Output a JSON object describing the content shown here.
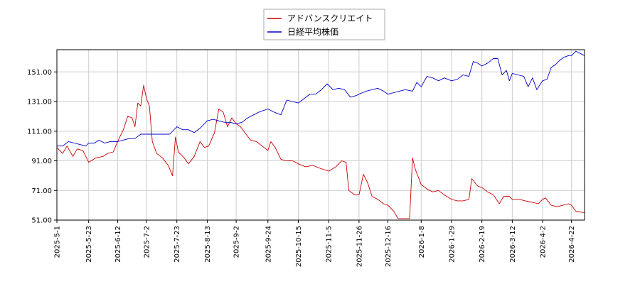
{
  "chart_data": {
    "type": "line",
    "title": "",
    "xlabel": "",
    "ylabel": "",
    "ylim": [
      51,
      166
    ],
    "y_ticks": [
      "51.00",
      "71.00",
      "91.00",
      "111.00",
      "131.00",
      "151.00"
    ],
    "x_range": [
      "2025-05-01",
      "2026-05-01"
    ],
    "x_ticks": [
      "2025-5-1",
      "2025-5-23",
      "2025-6-12",
      "2025-7-2",
      "2025-7-23",
      "2025-8-13",
      "2025-9-2",
      "2025-9-24",
      "2025-10-15",
      "2025-11-5",
      "2025-11-26",
      "2025-12-16",
      "2026-1-8",
      "2026-1-29",
      "2026-2-19",
      "2026-3-12",
      "2026-4-2",
      "2026-4-22"
    ],
    "grid": true,
    "legend_position": "top-center",
    "series": [
      {
        "name": "アドバンスクリエイト",
        "color": "#cc0000",
        "points": [
          [
            "2025-05-01",
            100
          ],
          [
            "2025-05-05",
            96
          ],
          [
            "2025-05-08",
            101
          ],
          [
            "2025-05-12",
            94
          ],
          [
            "2025-05-15",
            99
          ],
          [
            "2025-05-19",
            98
          ],
          [
            "2025-05-23",
            90
          ],
          [
            "2025-05-28",
            93
          ],
          [
            "2025-06-02",
            94
          ],
          [
            "2025-06-05",
            96
          ],
          [
            "2025-06-09",
            97
          ],
          [
            "2025-06-12",
            104
          ],
          [
            "2025-06-14",
            108
          ],
          [
            "2025-06-16",
            112
          ],
          [
            "2025-06-19",
            121
          ],
          [
            "2025-06-22",
            120
          ],
          [
            "2025-06-24",
            114
          ],
          [
            "2025-06-26",
            130
          ],
          [
            "2025-06-28",
            128
          ],
          [
            "2025-06-30",
            142
          ],
          [
            "2025-07-02",
            133
          ],
          [
            "2025-07-04",
            128
          ],
          [
            "2025-07-06",
            104
          ],
          [
            "2025-07-09",
            96
          ],
          [
            "2025-07-13",
            93
          ],
          [
            "2025-07-17",
            88
          ],
          [
            "2025-07-20",
            81
          ],
          [
            "2025-07-22",
            107
          ],
          [
            "2025-07-24",
            97
          ],
          [
            "2025-07-28",
            93
          ],
          [
            "2025-07-31",
            89
          ],
          [
            "2025-08-04",
            94
          ],
          [
            "2025-08-08",
            104
          ],
          [
            "2025-08-11",
            100
          ],
          [
            "2025-08-14",
            101
          ],
          [
            "2025-08-18",
            110
          ],
          [
            "2025-08-21",
            126
          ],
          [
            "2025-08-24",
            124
          ],
          [
            "2025-08-27",
            114
          ],
          [
            "2025-08-30",
            120
          ],
          [
            "2025-09-02",
            116
          ],
          [
            "2025-09-05",
            114
          ],
          [
            "2025-09-08",
            110
          ],
          [
            "2025-09-12",
            105
          ],
          [
            "2025-09-16",
            104
          ],
          [
            "2025-09-20",
            101
          ],
          [
            "2025-09-24",
            98
          ],
          [
            "2025-09-26",
            104
          ],
          [
            "2025-09-29",
            100
          ],
          [
            "2025-10-03",
            92
          ],
          [
            "2025-10-07",
            91
          ],
          [
            "2025-10-11",
            91
          ],
          [
            "2025-10-15",
            89
          ],
          [
            "2025-10-20",
            87
          ],
          [
            "2025-10-25",
            88
          ],
          [
            "2025-10-30",
            86
          ],
          [
            "2025-11-05",
            84
          ],
          [
            "2025-11-10",
            87
          ],
          [
            "2025-11-14",
            91
          ],
          [
            "2025-11-17",
            90
          ],
          [
            "2025-11-19",
            71
          ],
          [
            "2025-11-23",
            68
          ],
          [
            "2025-11-26",
            68
          ],
          [
            "2025-11-29",
            82
          ],
          [
            "2025-12-02",
            76
          ],
          [
            "2025-12-05",
            67
          ],
          [
            "2025-12-09",
            65
          ],
          [
            "2025-12-13",
            62
          ],
          [
            "2025-12-16",
            61
          ],
          [
            "2025-12-20",
            57
          ],
          [
            "2025-12-23",
            52
          ],
          [
            "2025-12-27",
            52
          ],
          [
            "2025-12-31",
            52
          ],
          [
            "2026-01-02",
            93
          ],
          [
            "2026-01-04",
            85
          ],
          [
            "2026-01-08",
            75
          ],
          [
            "2026-01-12",
            72
          ],
          [
            "2026-01-16",
            70
          ],
          [
            "2026-01-20",
            71
          ],
          [
            "2026-01-24",
            68
          ],
          [
            "2026-01-29",
            65
          ],
          [
            "2026-02-02",
            64
          ],
          [
            "2026-02-06",
            64
          ],
          [
            "2026-02-10",
            65
          ],
          [
            "2026-02-12",
            79
          ],
          [
            "2026-02-16",
            74
          ],
          [
            "2026-02-19",
            73
          ],
          [
            "2026-02-23",
            70
          ],
          [
            "2026-02-27",
            68
          ],
          [
            "2026-03-03",
            62
          ],
          [
            "2026-03-06",
            67
          ],
          [
            "2026-03-10",
            67
          ],
          [
            "2026-03-12",
            65
          ],
          [
            "2026-03-17",
            65
          ],
          [
            "2026-03-21",
            64
          ],
          [
            "2026-03-26",
            63
          ],
          [
            "2026-03-30",
            62
          ],
          [
            "2026-04-02",
            65
          ],
          [
            "2026-04-04",
            66
          ],
          [
            "2026-04-08",
            61
          ],
          [
            "2026-04-12",
            60
          ],
          [
            "2026-04-16",
            61
          ],
          [
            "2026-04-20",
            62
          ],
          [
            "2026-04-22",
            61
          ],
          [
            "2026-04-25",
            57
          ],
          [
            "2026-05-01",
            56
          ]
        ]
      },
      {
        "name": "日経平均株価",
        "color": "#0000cc",
        "points": [
          [
            "2025-05-01",
            101
          ],
          [
            "2025-05-05",
            101
          ],
          [
            "2025-05-09",
            104
          ],
          [
            "2025-05-13",
            103
          ],
          [
            "2025-05-17",
            102
          ],
          [
            "2025-05-21",
            101
          ],
          [
            "2025-05-23",
            103
          ],
          [
            "2025-05-27",
            103
          ],
          [
            "2025-05-30",
            105
          ],
          [
            "2025-06-03",
            103
          ],
          [
            "2025-06-07",
            104
          ],
          [
            "2025-06-12",
            104
          ],
          [
            "2025-06-16",
            105
          ],
          [
            "2025-06-20",
            106
          ],
          [
            "2025-06-24",
            106
          ],
          [
            "2025-06-28",
            109
          ],
          [
            "2025-07-02",
            109
          ],
          [
            "2025-07-06",
            109
          ],
          [
            "2025-07-10",
            109
          ],
          [
            "2025-07-14",
            109
          ],
          [
            "2025-07-18",
            109
          ],
          [
            "2025-07-23",
            114
          ],
          [
            "2025-07-27",
            112
          ],
          [
            "2025-07-31",
            112
          ],
          [
            "2025-08-04",
            110
          ],
          [
            "2025-08-08",
            113
          ],
          [
            "2025-08-13",
            118
          ],
          [
            "2025-08-17",
            119
          ],
          [
            "2025-08-21",
            118
          ],
          [
            "2025-08-25",
            117
          ],
          [
            "2025-08-29",
            117
          ],
          [
            "2025-09-02",
            116
          ],
          [
            "2025-09-06",
            117
          ],
          [
            "2025-09-10",
            120
          ],
          [
            "2025-09-14",
            122
          ],
          [
            "2025-09-18",
            124
          ],
          [
            "2025-09-24",
            126
          ],
          [
            "2025-09-28",
            124
          ],
          [
            "2025-10-03",
            122
          ],
          [
            "2025-10-07",
            132
          ],
          [
            "2025-10-11",
            131
          ],
          [
            "2025-10-15",
            130
          ],
          [
            "2025-10-19",
            133
          ],
          [
            "2025-10-23",
            136
          ],
          [
            "2025-10-27",
            136
          ],
          [
            "2025-10-31",
            139
          ],
          [
            "2025-11-04",
            143
          ],
          [
            "2025-11-08",
            139
          ],
          [
            "2025-11-12",
            140
          ],
          [
            "2025-11-16",
            139
          ],
          [
            "2025-11-20",
            134
          ],
          [
            "2025-11-24",
            135
          ],
          [
            "2025-11-26",
            136
          ],
          [
            "2025-12-01",
            138
          ],
          [
            "2025-12-05",
            139
          ],
          [
            "2025-12-09",
            140
          ],
          [
            "2025-12-13",
            138
          ],
          [
            "2025-12-16",
            136
          ],
          [
            "2025-12-20",
            137
          ],
          [
            "2025-12-24",
            138
          ],
          [
            "2025-12-28",
            139
          ],
          [
            "2026-01-02",
            138
          ],
          [
            "2026-01-05",
            144
          ],
          [
            "2026-01-08",
            141
          ],
          [
            "2026-01-12",
            148
          ],
          [
            "2026-01-16",
            147
          ],
          [
            "2026-01-20",
            145
          ],
          [
            "2026-01-24",
            147
          ],
          [
            "2026-01-29",
            145
          ],
          [
            "2026-02-02",
            146
          ],
          [
            "2026-02-06",
            149
          ],
          [
            "2026-02-10",
            148
          ],
          [
            "2026-02-13",
            158
          ],
          [
            "2026-02-16",
            157
          ],
          [
            "2026-02-19",
            155
          ],
          [
            "2026-02-23",
            157
          ],
          [
            "2026-02-27",
            160
          ],
          [
            "2026-03-02",
            160
          ],
          [
            "2026-03-05",
            149
          ],
          [
            "2026-03-08",
            152
          ],
          [
            "2026-03-10",
            145
          ],
          [
            "2026-03-12",
            150
          ],
          [
            "2026-03-16",
            149
          ],
          [
            "2026-03-20",
            148
          ],
          [
            "2026-03-23",
            141
          ],
          [
            "2026-03-26",
            147
          ],
          [
            "2026-03-29",
            139
          ],
          [
            "2026-04-02",
            145
          ],
          [
            "2026-04-05",
            146
          ],
          [
            "2026-04-08",
            154
          ],
          [
            "2026-04-11",
            156
          ],
          [
            "2026-04-14",
            159
          ],
          [
            "2026-04-17",
            161
          ],
          [
            "2026-04-20",
            162
          ],
          [
            "2026-04-22",
            162
          ],
          [
            "2026-04-25",
            165
          ],
          [
            "2026-05-01",
            162
          ]
        ]
      }
    ]
  }
}
